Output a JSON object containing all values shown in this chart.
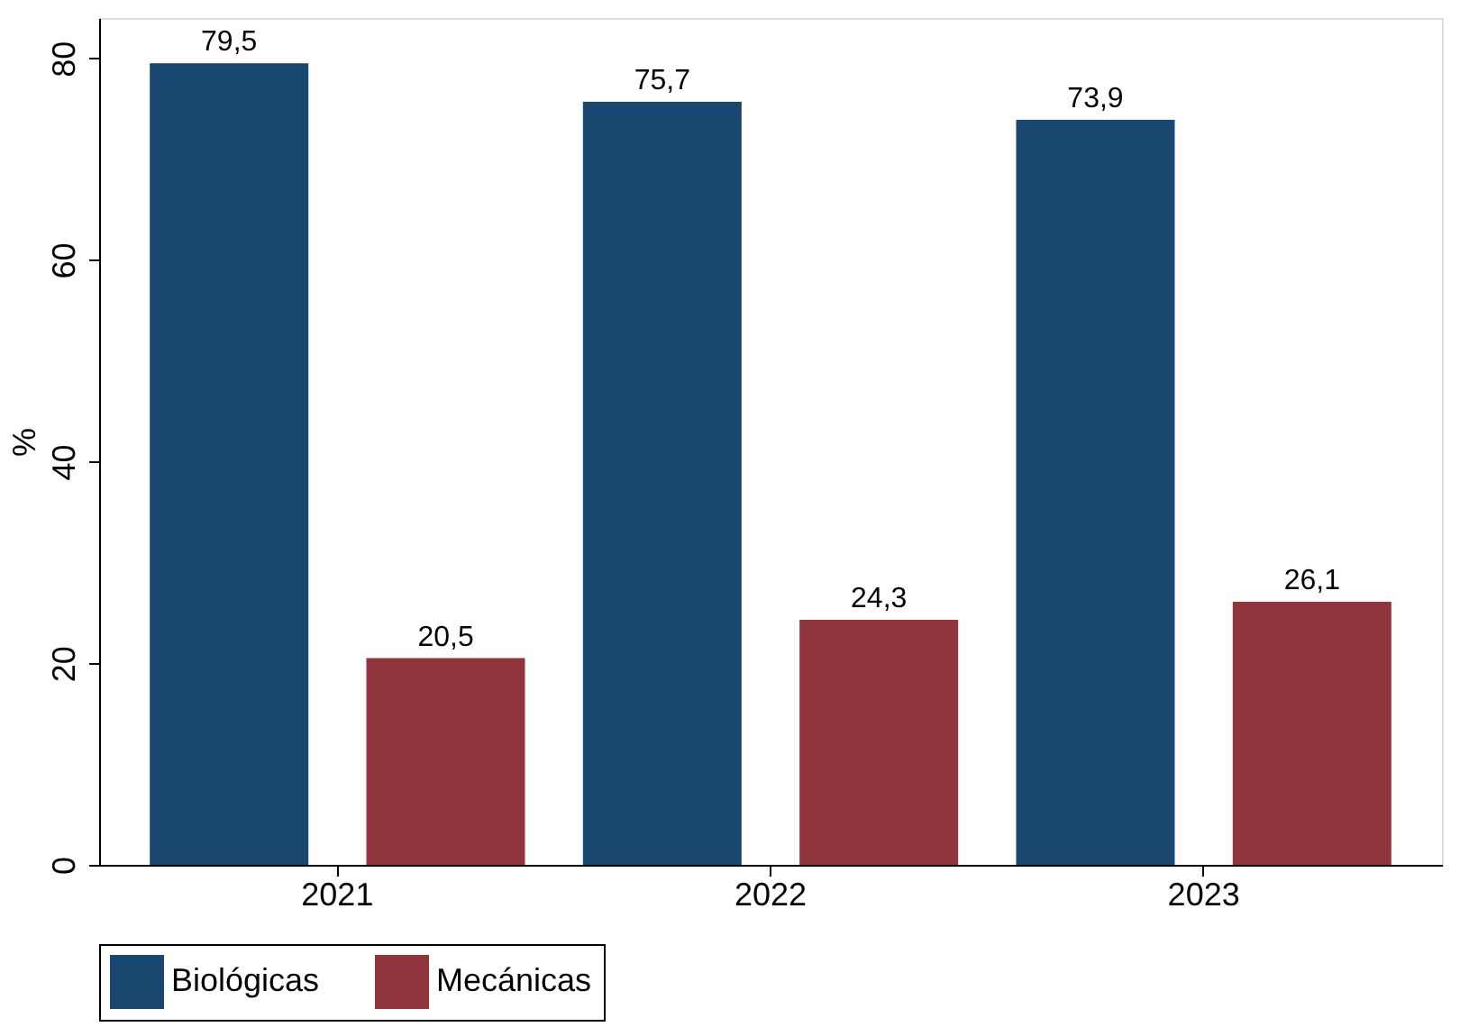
{
  "chart_data": {
    "type": "bar",
    "ylabel": "%",
    "categories": [
      "2021",
      "2022",
      "2023"
    ],
    "series": [
      {
        "name": "Biológicas",
        "color": "#1a476f",
        "values": [
          79.5,
          75.7,
          73.9
        ],
        "value_labels": [
          "79,5",
          "75,7",
          "73,9"
        ]
      },
      {
        "name": "Mecánicas",
        "color": "#90353b",
        "values": [
          20.5,
          24.3,
          26.1
        ],
        "value_labels": [
          "20,5",
          "24,3",
          "26,1"
        ]
      }
    ],
    "ylim": [
      0,
      84
    ],
    "yticks": [
      0,
      20,
      40,
      60,
      80
    ],
    "grid": false,
    "legend": "bottom"
  }
}
